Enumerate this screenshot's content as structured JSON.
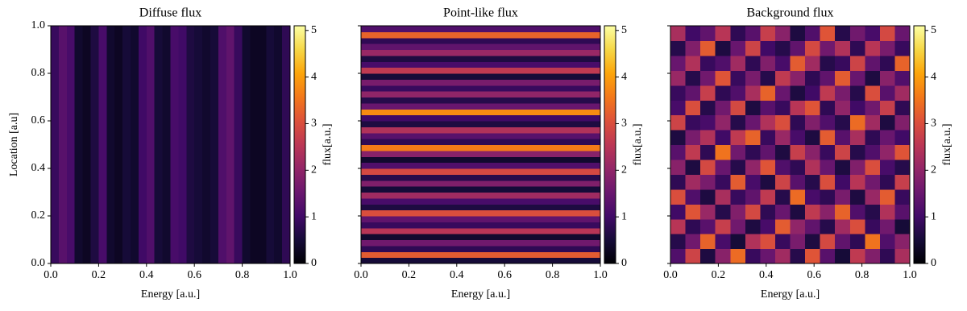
{
  "chart_data": [
    {
      "type": "heatmap",
      "title": "Diffuse flux",
      "x_label": "Energy [a.u.]",
      "y_label": "Location [a.u]",
      "colormap": "inferno",
      "clim": [
        0,
        5.1
      ],
      "colorbar_label": "flux[a.u.]",
      "cticks": [
        0,
        1,
        2,
        3,
        4,
        5
      ],
      "xlim": [
        0,
        1
      ],
      "ylim": [
        0,
        1
      ],
      "xticks": [
        {
          "value": 0,
          "label": "0.0"
        },
        {
          "value": 0.2,
          "label": "0.2"
        },
        {
          "value": 0.4,
          "label": "0.4"
        },
        {
          "value": 0.6,
          "label": "0.6"
        },
        {
          "value": 0.8,
          "label": "0.8"
        },
        {
          "value": 1,
          "label": "1.0"
        }
      ],
      "yticks": [
        {
          "value": 0,
          "label": "0.0"
        },
        {
          "value": 0.2,
          "label": "0.2"
        },
        {
          "value": 0.4,
          "label": "0.4"
        },
        {
          "value": 0.6,
          "label": "0.6"
        },
        {
          "value": 0.8,
          "label": "0.8"
        },
        {
          "value": 1,
          "label": "1.0"
        }
      ],
      "z": [
        [
          0.9,
          1.3,
          1.1,
          0.4,
          0.3,
          0.6,
          1.1,
          0.4,
          0.3,
          0.5,
          0.4,
          1.0,
          1.2,
          0.5,
          0.4,
          1.1,
          1.0,
          0.6,
          0.5,
          0.4,
          0.5,
          1.2,
          1.4,
          0.9,
          0.4,
          0.3,
          0.3,
          0.5,
          0.4,
          0.8
        ]
      ]
    },
    {
      "type": "heatmap",
      "title": "Point-like flux",
      "x_label": "Energy [a.u.]",
      "colormap": "inferno",
      "clim": [
        0,
        5.1
      ],
      "colorbar_label": "flux[a.u.]",
      "cticks": [
        0,
        1,
        2,
        3,
        4,
        5
      ],
      "xlim": [
        0,
        1
      ],
      "ylim": [
        0,
        1
      ],
      "xticks": [
        {
          "value": 0,
          "label": "0.0"
        },
        {
          "value": 0.2,
          "label": "0.2"
        },
        {
          "value": 0.4,
          "label": "0.4"
        },
        {
          "value": 0.6,
          "label": "0.6"
        },
        {
          "value": 0.8,
          "label": "0.8"
        },
        {
          "value": 1,
          "label": "1.0"
        }
      ],
      "yticks": [
        0,
        0.2,
        0.4,
        0.6,
        0.8,
        1
      ],
      "ytick_labels": false,
      "z": [
        [
          0.5
        ],
        [
          3.2
        ],
        [
          0.8
        ],
        [
          1.6
        ],
        [
          0.4
        ],
        [
          2.5
        ],
        [
          0.9
        ],
        [
          1.4
        ],
        [
          3.0
        ],
        [
          0.6
        ],
        [
          1.1
        ],
        [
          2.2
        ],
        [
          0.5
        ],
        [
          1.8
        ],
        [
          0.7
        ],
        [
          2.9
        ],
        [
          1.2
        ],
        [
          0.4
        ],
        [
          1.9
        ],
        [
          3.6
        ],
        [
          0.8
        ],
        [
          1.3
        ],
        [
          2.4
        ],
        [
          0.6
        ],
        [
          1.0
        ],
        [
          3.8
        ],
        [
          1.5
        ],
        [
          0.7
        ],
        [
          2.0
        ],
        [
          0.9
        ],
        [
          1.7
        ],
        [
          0.5
        ],
        [
          2.6
        ],
        [
          1.1
        ],
        [
          0.6
        ],
        [
          2.1
        ],
        [
          1.4
        ],
        [
          0.8
        ],
        [
          3.3
        ],
        [
          1.2
        ]
      ]
    },
    {
      "type": "heatmap",
      "title": "Background flux",
      "x_label": "Energy [a.u.]",
      "colormap": "inferno",
      "clim": [
        0,
        5.1
      ],
      "colorbar_label": "flux[a.u.]",
      "cticks": [
        0,
        1,
        2,
        3,
        4,
        5
      ],
      "xlim": [
        0,
        1
      ],
      "ylim": [
        0,
        1
      ],
      "xticks": [
        {
          "value": 0,
          "label": "0.0"
        },
        {
          "value": 0.2,
          "label": "0.2"
        },
        {
          "value": 0.4,
          "label": "0.4"
        },
        {
          "value": 0.6,
          "label": "0.6"
        },
        {
          "value": 0.8,
          "label": "0.8"
        },
        {
          "value": 1,
          "label": "1.0"
        }
      ],
      "yticks": [
        0,
        0.2,
        0.4,
        0.6,
        0.8,
        1
      ],
      "ytick_labels": false,
      "z": [
        [
          1.2,
          2.8,
          0.6,
          1.9,
          3.4,
          0.9,
          1.5,
          2.2,
          0.7,
          3.1,
          1.3,
          0.5,
          2.6,
          1.8,
          0.8,
          2.3
        ],
        [
          0.7,
          1.6,
          3.3,
          1.1,
          0.5,
          2.4,
          3.0,
          0.9,
          1.7,
          0.6,
          2.9,
          1.4,
          0.8,
          3.5,
          1.2,
          1.9
        ],
        [
          2.5,
          0.8,
          1.3,
          2.7,
          1.6,
          0.6,
          1.1,
          3.2,
          2.0,
          1.4,
          0.7,
          2.2,
          3.0,
          0.9,
          1.6,
          0.5
        ],
        [
          1.0,
          3.1,
          2.1,
          0.7,
          1.8,
          2.9,
          0.8,
          1.5,
          0.6,
          2.6,
          1.9,
          3.3,
          1.2,
          0.7,
          2.4,
          1.3
        ],
        [
          3.0,
          1.2,
          0.6,
          2.3,
          0.9,
          1.4,
          2.6,
          0.7,
          3.4,
          1.1,
          0.8,
          1.7,
          0.6,
          2.1,
          3.2,
          0.9
        ],
        [
          0.8,
          2.2,
          1.7,
          0.9,
          3.2,
          1.1,
          0.6,
          2.8,
          1.3,
          0.7,
          3.0,
          1.0,
          2.5,
          1.6,
          0.8,
          2.7
        ],
        [
          1.9,
          0.6,
          2.9,
          1.5,
          0.7,
          2.0,
          3.1,
          1.2,
          0.8,
          2.4,
          1.5,
          0.6,
          1.8,
          3.0,
          1.1,
          0.7
        ],
        [
          1.3,
          2.6,
          0.8,
          3.5,
          1.6,
          0.8,
          1.4,
          0.6,
          2.7,
          1.9,
          0.9,
          2.8,
          0.7,
          1.2,
          2.0,
          3.1
        ],
        [
          0.6,
          1.7,
          2.4,
          1.0,
          2.6,
          3.3,
          0.9,
          2.1,
          1.1,
          0.6,
          3.2,
          1.3,
          2.3,
          0.8,
          1.5,
          1.0
        ],
        [
          2.8,
          0.9,
          1.1,
          2.0,
          0.7,
          1.5,
          2.4,
          3.0,
          0.8,
          1.8,
          1.2,
          0.7,
          3.4,
          2.2,
          0.6,
          1.8
        ],
        [
          1.1,
          3.0,
          0.7,
          1.6,
          2.9,
          0.6,
          1.3,
          0.9,
          2.5,
          3.1,
          0.8,
          2.0,
          1.0,
          1.6,
          2.7,
          0.8
        ],
        [
          0.9,
          1.4,
          2.7,
          0.8,
          1.2,
          2.3,
          3.3,
          1.5,
          0.6,
          1.0,
          2.6,
          1.7,
          0.7,
          3.0,
          1.3,
          2.2
        ],
        [
          2.1,
          0.7,
          1.6,
          3.1,
          0.9,
          1.7,
          0.7,
          2.6,
          1.9,
          0.8,
          1.4,
          3.2,
          1.5,
          0.6,
          1.9,
          1.2
        ],
        [
          1.5,
          2.4,
          0.9,
          1.2,
          2.2,
          0.8,
          1.8,
          1.1,
          3.2,
          2.2,
          0.7,
          0.9,
          2.8,
          1.4,
          0.8,
          3.3
        ],
        [
          0.7,
          1.8,
          3.2,
          0.6,
          1.5,
          2.8,
          1.0,
          0.7,
          1.4,
          2.9,
          1.6,
          2.4,
          0.8,
          2.5,
          1.7,
          0.9
        ],
        [
          2.3,
          1.0,
          1.4,
          2.5,
          0.8,
          1.3,
          2.7,
          1.9,
          0.6,
          1.2,
          3.1,
          0.7,
          1.6,
          1.1,
          2.9,
          1.5
        ]
      ]
    }
  ]
}
